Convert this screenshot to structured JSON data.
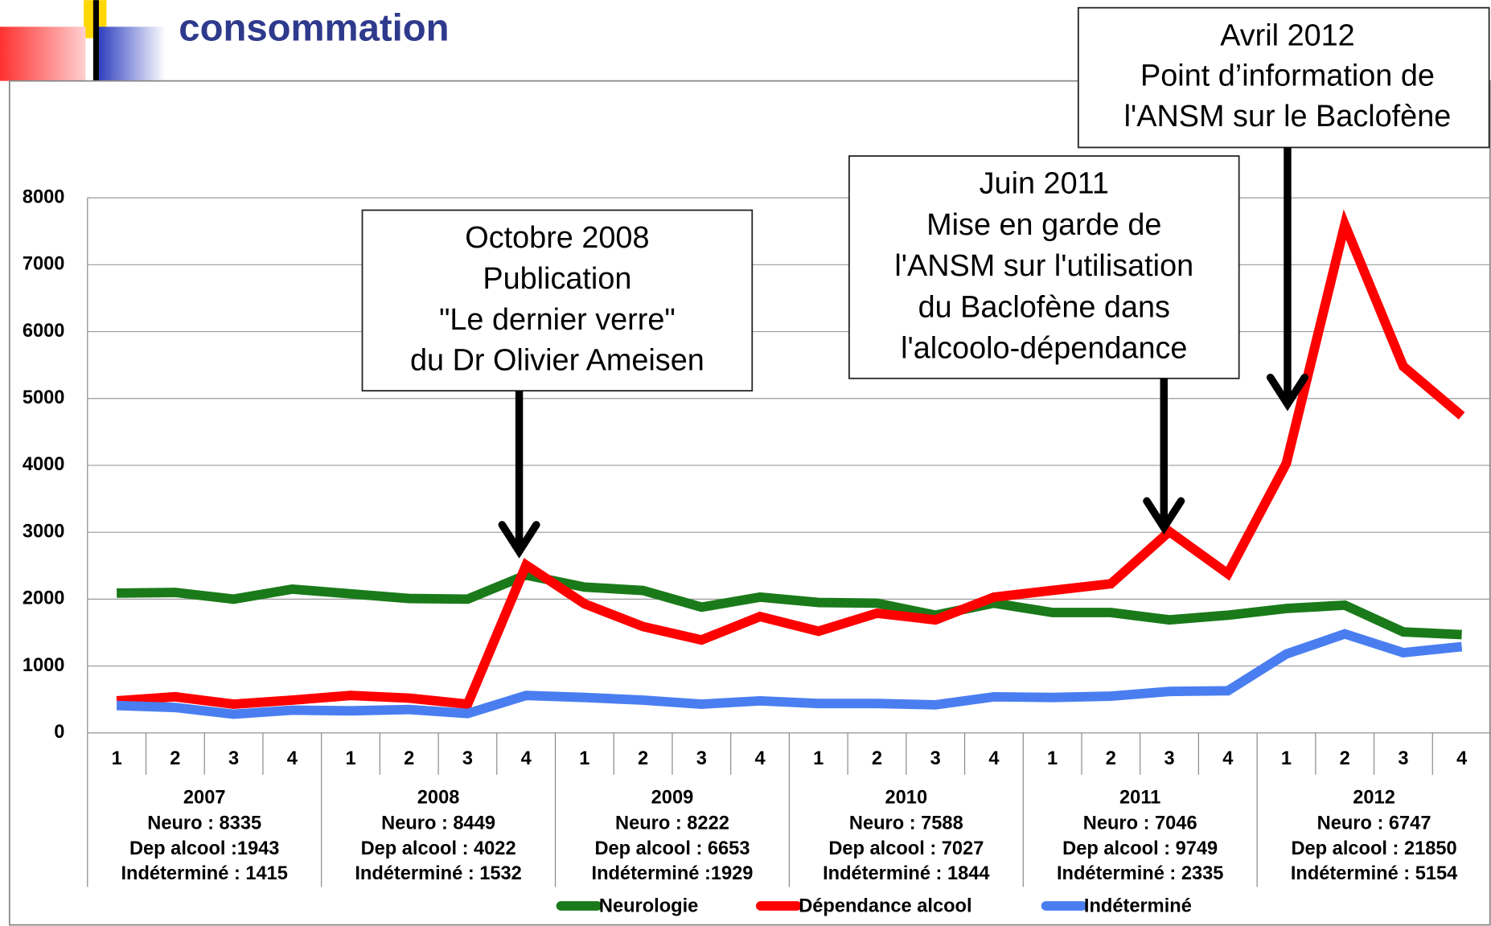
{
  "header": {
    "title": "consommation"
  },
  "chart_data": {
    "type": "line",
    "categories": [
      "1",
      "2",
      "3",
      "4",
      "1",
      "2",
      "3",
      "4",
      "1",
      "2",
      "3",
      "4",
      "1",
      "2",
      "3",
      "4",
      "1",
      "2",
      "3",
      "4",
      "1",
      "2",
      "3",
      "4"
    ],
    "groups": [
      {
        "label": "2007",
        "lines": [
          "Neuro : 8335",
          "Dep alcool :1943",
          "Indéterminé : 1415"
        ]
      },
      {
        "label": "2008",
        "lines": [
          "Neuro : 8449",
          "Dep alcool : 4022",
          "Indéterminé : 1532"
        ]
      },
      {
        "label": "2009",
        "lines": [
          "Neuro : 8222",
          "Dep alcool : 6653",
          "Indéterminé :1929"
        ]
      },
      {
        "label": "2010",
        "lines": [
          "Neuro : 7588",
          "Dep alcool : 7027",
          "Indéterminé : 1844"
        ]
      },
      {
        "label": "2011",
        "lines": [
          "Neuro : 7046",
          "Dep alcool : 9749",
          "Indéterminé : 2335"
        ]
      },
      {
        "label": "2012",
        "lines": [
          "Neuro : 6747",
          "Dep alcool : 21850",
          "Indéterminé : 5154"
        ]
      }
    ],
    "series": [
      {
        "name": "Neurologie",
        "color": "#1a7a1a",
        "values": [
          2090,
          2100,
          2000,
          2150,
          2080,
          2010,
          2000,
          2360,
          2180,
          2130,
          1880,
          2030,
          1950,
          1940,
          1760,
          1940,
          1800,
          1800,
          1690,
          1760,
          1860,
          1910,
          1510,
          1470
        ]
      },
      {
        "name": "Dépendance alcool",
        "color": "#ff0000",
        "values": [
          480,
          540,
          430,
          490,
          560,
          520,
          430,
          2510,
          1930,
          1590,
          1390,
          1740,
          1520,
          1790,
          1690,
          2030,
          2130,
          2230,
          3010,
          2380,
          4030,
          7600,
          5480,
          4740
        ]
      },
      {
        "name": "Indéterminé",
        "color": "#4a7ef0",
        "values": [
          410,
          380,
          280,
          340,
          330,
          350,
          290,
          560,
          530,
          490,
          430,
          480,
          440,
          440,
          420,
          540,
          530,
          550,
          620,
          630,
          1180,
          1480,
          1200,
          1290
        ]
      }
    ],
    "ylim": [
      0,
      8000
    ],
    "yticks": [
      0,
      1000,
      2000,
      3000,
      4000,
      5000,
      6000,
      7000,
      8000
    ],
    "grid": true,
    "annotations": [
      {
        "lines": [
          "Octobre 2008",
          "Publication",
          "\"Le dernier verre\"",
          "du Dr Olivier Ameisen"
        ]
      },
      {
        "lines": [
          "Juin 2011",
          "Mise en garde de",
          "l'ANSM sur l'utilisation",
          "du Baclofène dans",
          "l'alcoolo-dépendance"
        ]
      },
      {
        "lines": [
          "Avril 2012",
          "Point d’information de",
          "l'ANSM sur le Baclofène"
        ]
      }
    ]
  }
}
